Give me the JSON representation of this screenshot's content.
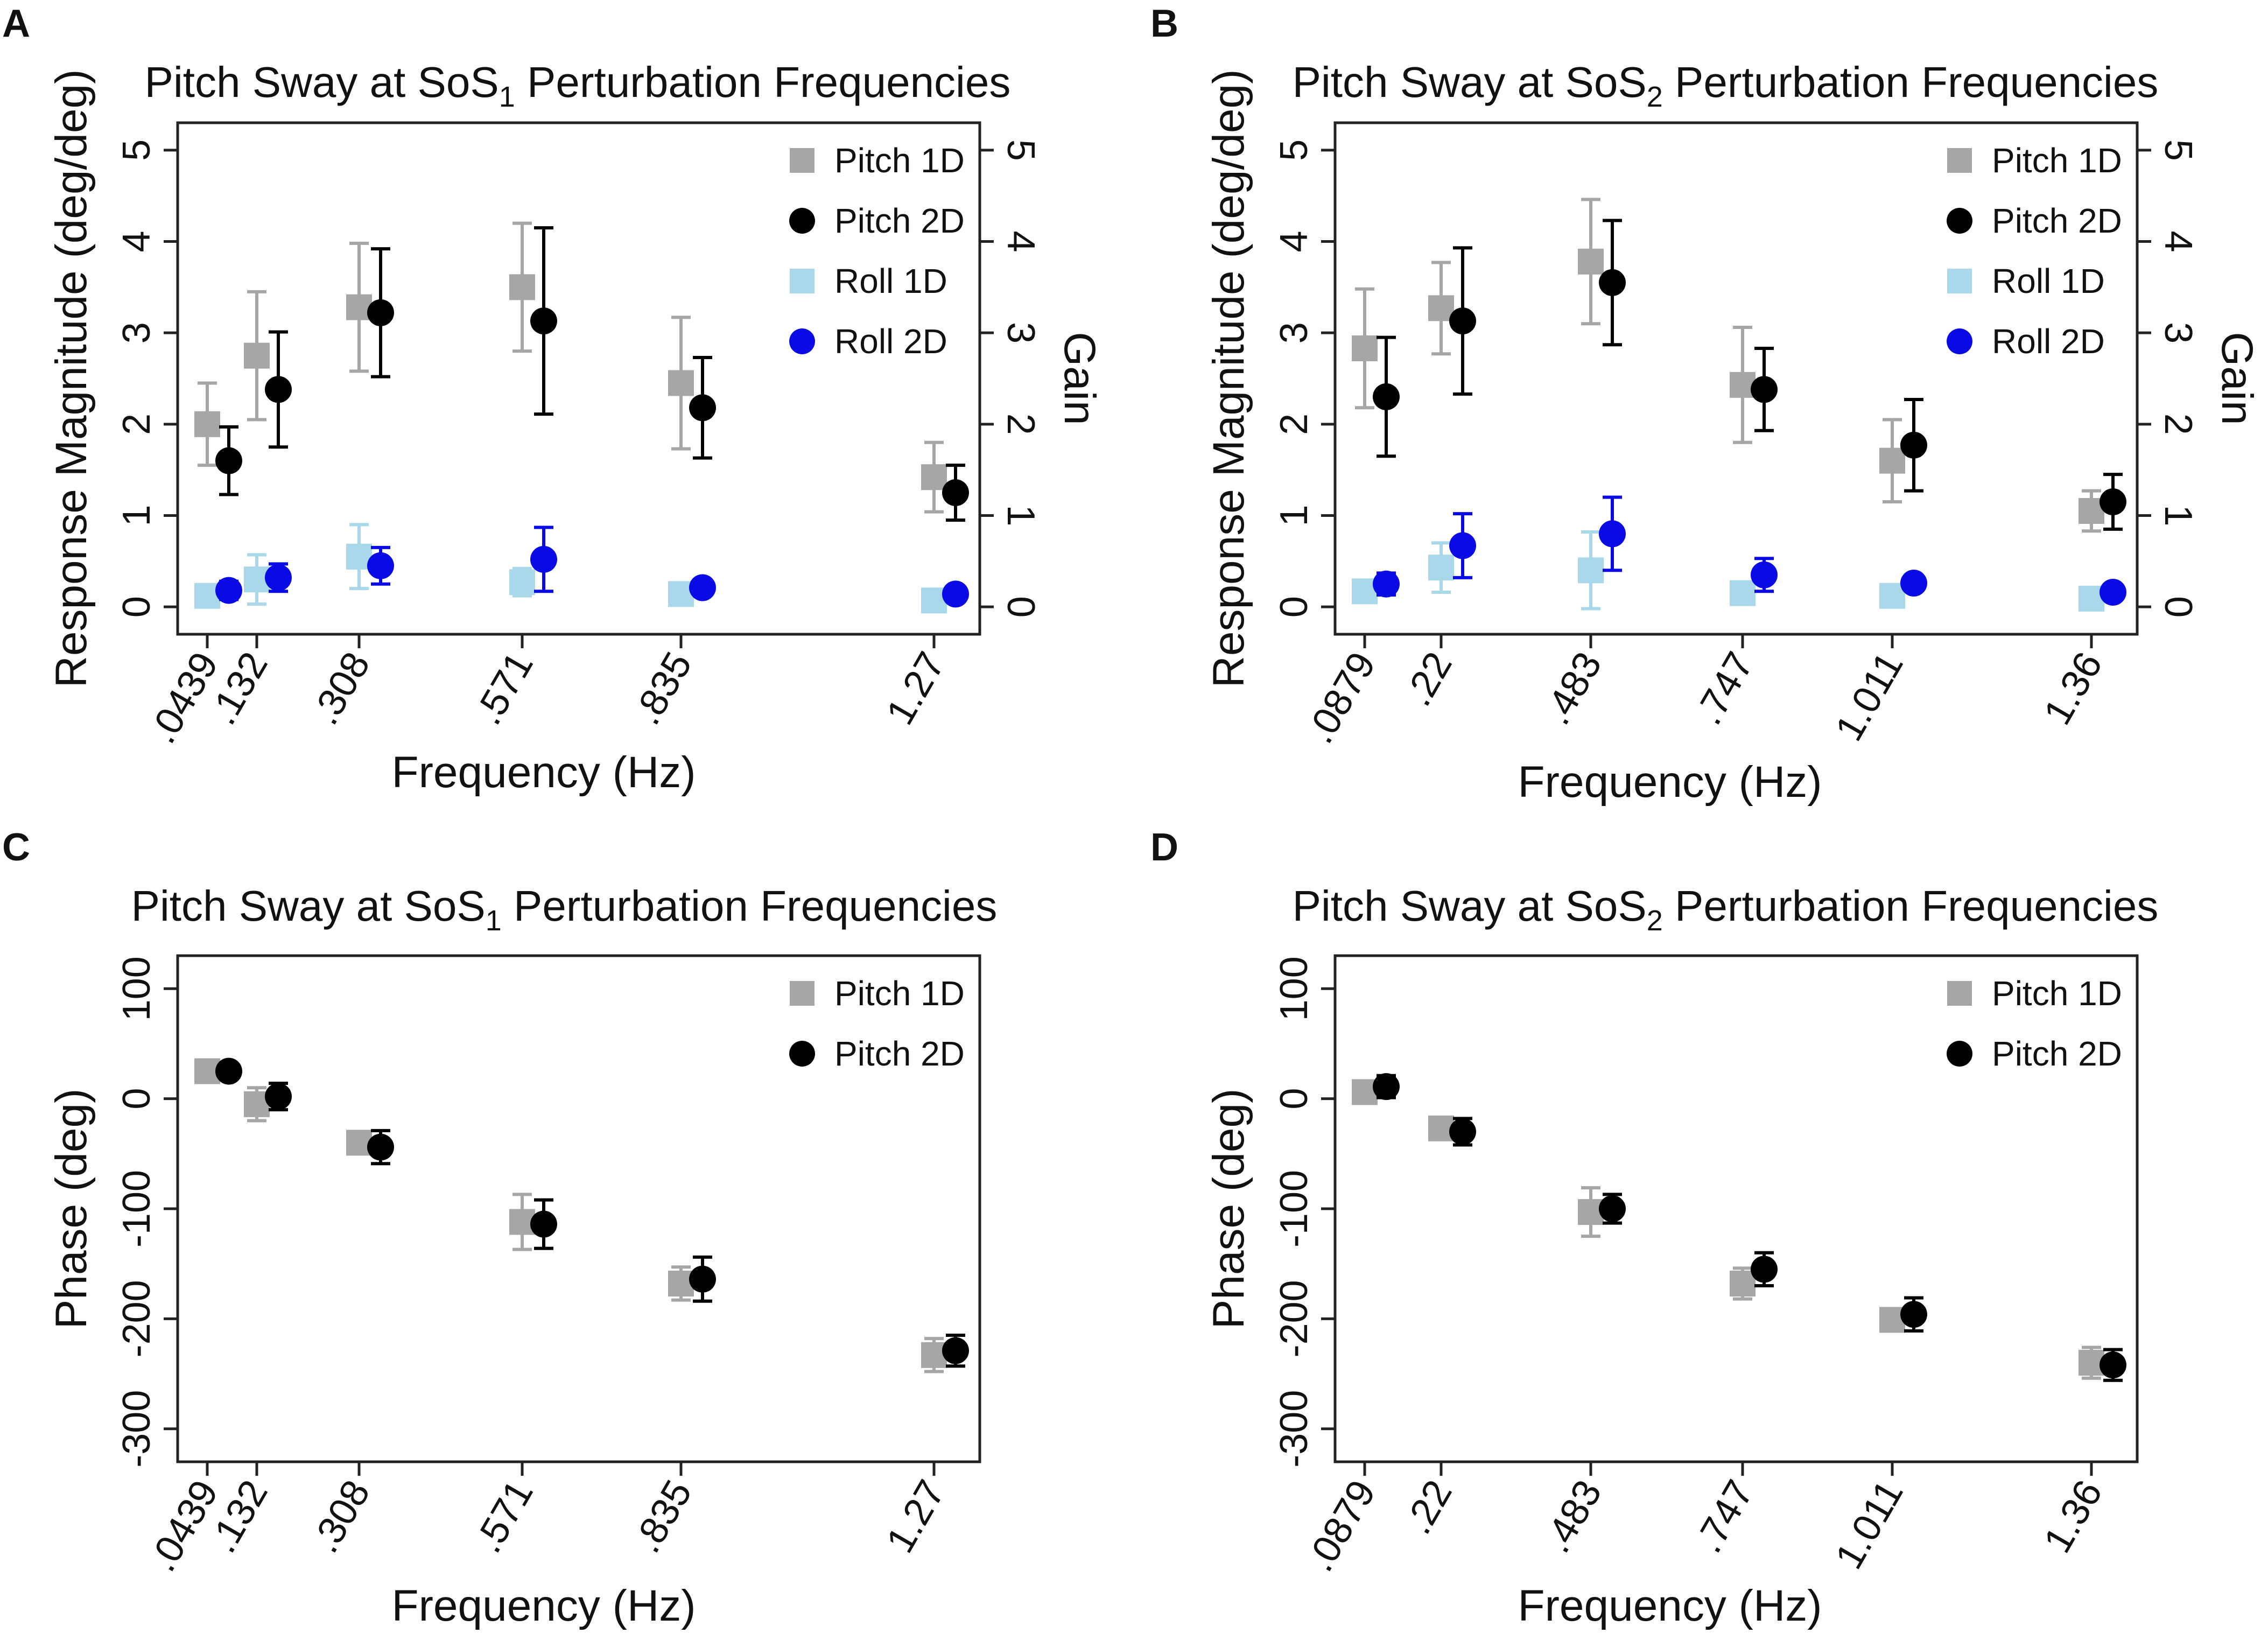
{
  "chart_data": [
    {
      "panel": "A",
      "type": "scatter",
      "title": "Pitch Sway at SoS",
      "title_subscript": "1",
      "title_suffix": " Perturbation Frequencies",
      "xlabel": "Frequency (Hz)",
      "ylabel": "Response Magnitude (deg/deg)",
      "y2label": "Gain",
      "categories": [
        ".0439",
        ".132",
        ".308",
        ".571",
        ".835",
        "1.27"
      ],
      "ylim": [
        -0.3,
        5.3
      ],
      "yticks": [
        0,
        1,
        2,
        3,
        4,
        5
      ],
      "y2ticks": [
        0,
        1,
        2,
        3,
        4,
        5
      ],
      "series": [
        {
          "name": "Pitch 1D",
          "marker": "square",
          "color": "#a6a6a6",
          "values": [
            2.0,
            2.75,
            3.28,
            3.5,
            2.45,
            1.42
          ],
          "err": [
            0.45,
            0.7,
            0.7,
            0.7,
            0.72,
            0.38
          ]
        },
        {
          "name": "Pitch 2D",
          "marker": "circle",
          "color": "#000000",
          "values": [
            1.6,
            2.38,
            3.22,
            3.13,
            2.18,
            1.25
          ],
          "err": [
            0.37,
            0.63,
            0.7,
            1.02,
            0.55,
            0.3
          ]
        },
        {
          "name": "Roll 1D",
          "marker": "square",
          "color": "#a8d8ea",
          "values": [
            0.12,
            0.3,
            0.55,
            0.27,
            0.14,
            0.07
          ],
          "err": [
            0.1,
            0.27,
            0.35,
            0.15,
            0.08,
            0.05
          ]
        },
        {
          "name": "Roll 2D",
          "marker": "circle",
          "color": "#0a0ae6",
          "values": [
            0.18,
            0.32,
            0.45,
            0.52,
            0.21,
            0.14
          ],
          "err": [
            0.1,
            0.15,
            0.2,
            0.35,
            0.07,
            0.06
          ]
        }
      ],
      "legend": "top-right"
    },
    {
      "panel": "B",
      "type": "scatter",
      "title": "Pitch Sway at SoS",
      "title_subscript": "2",
      "title_suffix": " Perturbation Frequencies",
      "xlabel": "Frequency (Hz)",
      "ylabel": "Response Magnitude (deg/deg)",
      "y2label": "Gain",
      "categories": [
        ".0879",
        ".22",
        ".483",
        ".747",
        "1.011",
        "1.36"
      ],
      "ylim": [
        -0.3,
        5.3
      ],
      "yticks": [
        0,
        1,
        2,
        3,
        4,
        5
      ],
      "y2ticks": [
        0,
        1,
        2,
        3,
        4,
        5
      ],
      "series": [
        {
          "name": "Pitch 1D",
          "marker": "square",
          "color": "#a6a6a6",
          "values": [
            2.83,
            3.27,
            3.78,
            2.43,
            1.6,
            1.05
          ],
          "err": [
            0.65,
            0.5,
            0.68,
            0.63,
            0.45,
            0.22
          ]
        },
        {
          "name": "Pitch 2D",
          "marker": "circle",
          "color": "#000000",
          "values": [
            2.3,
            3.13,
            3.55,
            2.38,
            1.77,
            1.15
          ],
          "err": [
            0.65,
            0.8,
            0.68,
            0.45,
            0.5,
            0.3
          ]
        },
        {
          "name": "Roll 1D",
          "marker": "square",
          "color": "#a8d8ea",
          "values": [
            0.17,
            0.43,
            0.4,
            0.15,
            0.12,
            0.09
          ],
          "err": [
            0.1,
            0.27,
            0.42,
            0.08,
            0.05,
            0.04
          ]
        },
        {
          "name": "Roll 2D",
          "marker": "circle",
          "color": "#0a0ae6",
          "values": [
            0.25,
            0.67,
            0.8,
            0.35,
            0.26,
            0.16
          ],
          "err": [
            0.12,
            0.35,
            0.4,
            0.18,
            0.08,
            0.05
          ]
        }
      ],
      "legend": "top-right"
    },
    {
      "panel": "C",
      "type": "scatter",
      "title": "Pitch Sway at SoS",
      "title_subscript": "1",
      "title_suffix": " Perturbation Frequencies",
      "xlabel": "Frequency (Hz)",
      "ylabel": "Phase (deg)",
      "y2label": "",
      "categories": [
        ".0439",
        ".132",
        ".308",
        ".571",
        ".835",
        "1.27"
      ],
      "ylim": [
        -330,
        130
      ],
      "yticks": [
        100,
        0,
        -100,
        -200,
        -300
      ],
      "y2ticks": [],
      "series": [
        {
          "name": "Pitch 1D",
          "marker": "square",
          "color": "#a6a6a6",
          "values": [
            25,
            -5,
            -40,
            -112,
            -168,
            -233
          ],
          "err": [
            5,
            15,
            10,
            25,
            15,
            15
          ]
        },
        {
          "name": "Pitch 2D",
          "marker": "circle",
          "color": "#000000",
          "values": [
            25,
            2,
            -44,
            -114,
            -164,
            -229
          ],
          "err": [
            5,
            12,
            15,
            22,
            20,
            14
          ]
        }
      ],
      "legend": "top-right"
    },
    {
      "panel": "D",
      "type": "scatter",
      "title": "Pitch Sway at SoS",
      "title_subscript": "2",
      "title_suffix": " Perturbation Frequencies",
      "xlabel": "Frequency (Hz)",
      "ylabel": "Phase (deg)",
      "y2label": "",
      "categories": [
        ".0879",
        ".22",
        ".483",
        ".747",
        "1.011",
        "1.36"
      ],
      "ylim": [
        -330,
        130
      ],
      "yticks": [
        100,
        0,
        -100,
        -200,
        -300
      ],
      "y2ticks": [],
      "series": [
        {
          "name": "Pitch 1D",
          "marker": "square",
          "color": "#a6a6a6",
          "values": [
            6,
            -27,
            -103,
            -168,
            -201,
            -240
          ],
          "err": [
            5,
            8,
            22,
            14,
            8,
            14
          ]
        },
        {
          "name": "Pitch 2D",
          "marker": "circle",
          "color": "#000000",
          "values": [
            11,
            -30,
            -100,
            -155,
            -196,
            -242
          ],
          "err": [
            10,
            12,
            13,
            15,
            15,
            14
          ]
        }
      ],
      "legend": "top-right"
    }
  ]
}
